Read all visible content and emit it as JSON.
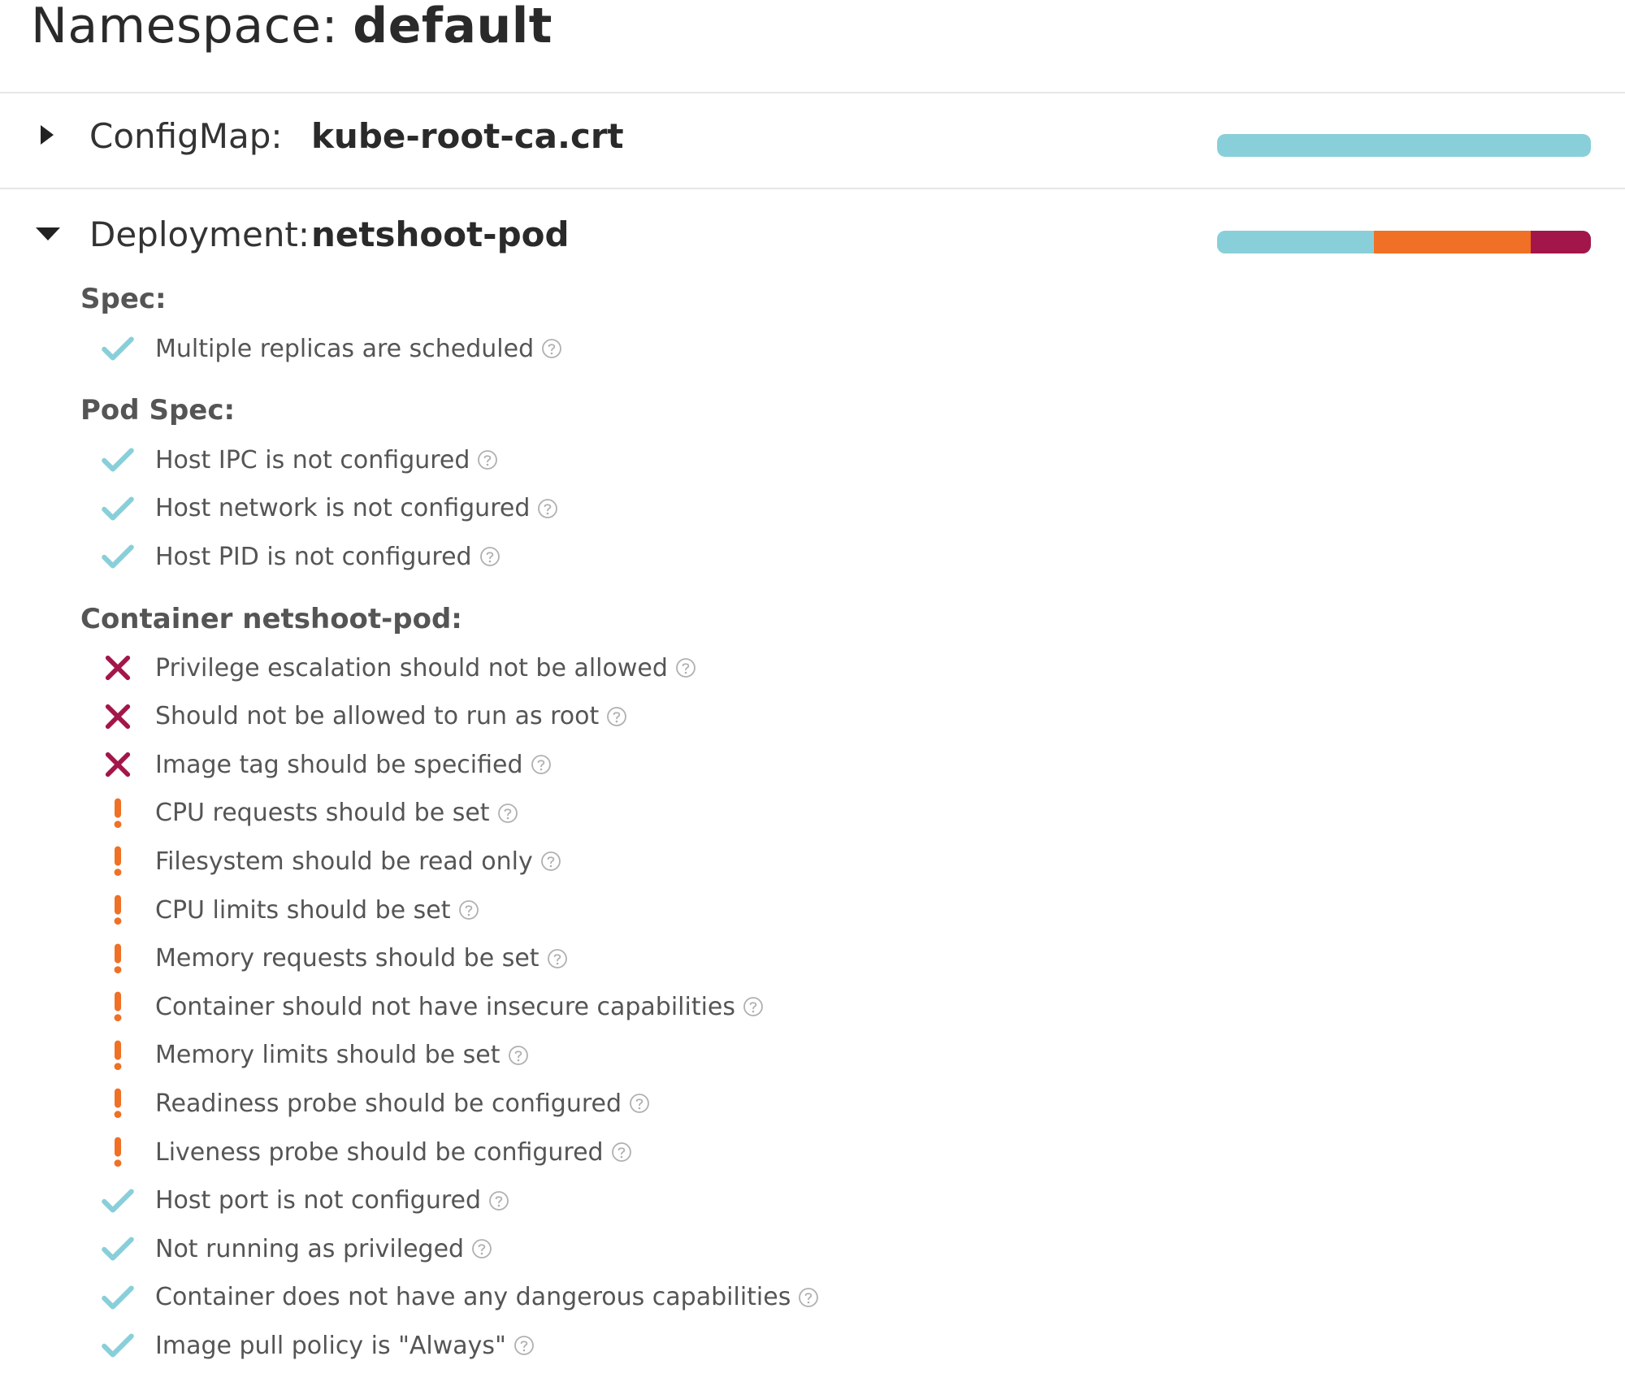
{
  "namespace": {
    "label": "Namespace:",
    "name": "default"
  },
  "colors": {
    "pass": "#88cfd9",
    "warning": "#f07025",
    "danger": "#a3164a",
    "help": "#b0b0b0"
  },
  "resources": [
    {
      "kind": "ConfigMap:",
      "name": "kube-root-ca.crt",
      "expanded": false,
      "caret_icon": "caret-right-icon",
      "score_fractions": {
        "pass": 1.0,
        "warning": 0.0,
        "danger": 0.0
      }
    },
    {
      "kind": "Deployment:",
      "name": "netshoot-pod",
      "expanded": true,
      "caret_icon": "caret-down-icon",
      "score_fractions": {
        "pass": 0.42,
        "warning": 0.42,
        "danger": 0.16
      }
    }
  ],
  "sections": {
    "spec": {
      "title": "Spec:",
      "items": [
        {
          "status": "pass",
          "label": "Multiple replicas are scheduled"
        }
      ]
    },
    "pod_spec": {
      "title": "Pod Spec:",
      "items": [
        {
          "status": "pass",
          "label": "Host IPC is not configured"
        },
        {
          "status": "pass",
          "label": "Host network is not configured"
        },
        {
          "status": "pass",
          "label": "Host PID is not configured"
        }
      ]
    },
    "container": {
      "title": "Container netshoot-pod:",
      "items": [
        {
          "status": "danger",
          "label": "Privilege escalation should not be allowed"
        },
        {
          "status": "danger",
          "label": "Should not be allowed to run as root"
        },
        {
          "status": "danger",
          "label": "Image tag should be specified"
        },
        {
          "status": "warning",
          "label": "CPU requests should be set"
        },
        {
          "status": "warning",
          "label": "Filesystem should be read only"
        },
        {
          "status": "warning",
          "label": "CPU limits should be set"
        },
        {
          "status": "warning",
          "label": "Memory requests should be set"
        },
        {
          "status": "warning",
          "label": "Container should not have insecure capabilities"
        },
        {
          "status": "warning",
          "label": "Memory limits should be set"
        },
        {
          "status": "warning",
          "label": "Readiness probe should be configured"
        },
        {
          "status": "warning",
          "label": "Liveness probe should be configured"
        },
        {
          "status": "pass",
          "label": "Host port is not configured"
        },
        {
          "status": "pass",
          "label": "Not running as privileged"
        },
        {
          "status": "pass",
          "label": "Container does not have any dangerous capabilities"
        },
        {
          "status": "pass",
          "label": "Image pull policy is \"Always\""
        }
      ]
    }
  },
  "icons": {
    "pass": "check-icon",
    "warning": "exclamation-icon",
    "danger": "x-icon",
    "help": "question-circle-icon"
  }
}
